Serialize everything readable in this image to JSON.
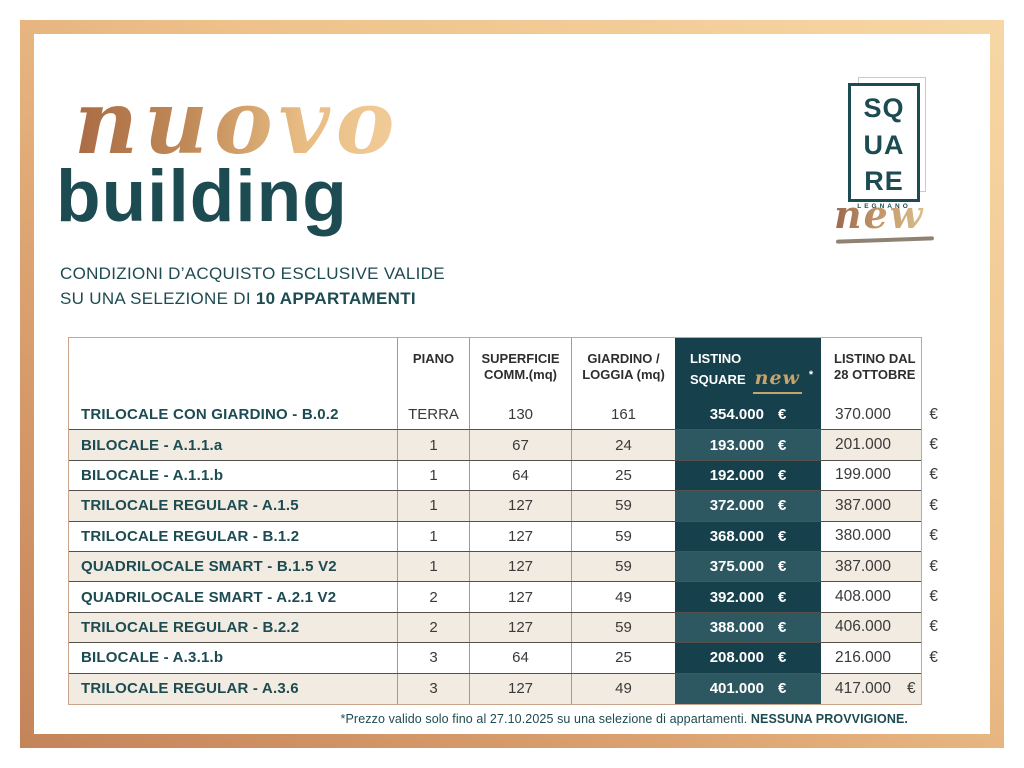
{
  "page": {
    "title_script": "nuovo",
    "title_main": "building",
    "subtitle_line1": "CONDIZIONI D’ACQUISTO ESCLUSIVE VALIDE",
    "subtitle_line2_prefix": "SU UNA SELEZIONE DI ",
    "subtitle_line2_bold": "10 APPARTAMENTI"
  },
  "logo": {
    "lines": [
      "SQ",
      "UA",
      "RE"
    ],
    "city": "LEGNANO",
    "script": "new"
  },
  "colors": {
    "teal": "#1d4b52",
    "dark_column": "#16404b",
    "dark_column_alt": "#2d5761",
    "beige_row": "#f1ebe1",
    "gold_accent": "#c8a36a",
    "frame_light": "#f7d7a6",
    "frame_dark": "#c4845a"
  },
  "table": {
    "headers": {
      "piano": "PIANO",
      "superficie": [
        "SUPERFICIE",
        "COMM.(mq)"
      ],
      "giardino": [
        "GIARDINO /",
        "LOGGIA (mq)"
      ],
      "listino_square_line1": "LISTINO",
      "listino_square_word": "SQUARE",
      "listino_square_script": "new",
      "listino_square_asterisk": "*",
      "listino_dal": [
        "LISTINO DAL",
        "28 OTTOBRE"
      ]
    },
    "currency": "€",
    "rows": [
      {
        "name": "TRILOCALE CON GIARDINO - B.0.2",
        "piano": "TERRA",
        "superficie": "130",
        "giardino": "161",
        "listino_square": "354.000",
        "listino_dal": "370.000"
      },
      {
        "name": "BILOCALE - A.1.1.a",
        "piano": "1",
        "superficie": "67",
        "giardino": "24",
        "listino_square": "193.000",
        "listino_dal": "201.000"
      },
      {
        "name": "BILOCALE - A.1.1.b",
        "piano": "1",
        "superficie": "64",
        "giardino": "25",
        "listino_square": "192.000",
        "listino_dal": "199.000"
      },
      {
        "name": "TRILOCALE REGULAR - A.1.5",
        "piano": "1",
        "superficie": "127",
        "giardino": "59",
        "listino_square": "372.000",
        "listino_dal": "387.000"
      },
      {
        "name": "TRILOCALE REGULAR - B.1.2",
        "piano": "1",
        "superficie": "127",
        "giardino": "59",
        "listino_square": "368.000",
        "listino_dal": "380.000"
      },
      {
        "name": "QUADRILOCALE SMART - B.1.5 V2",
        "piano": "1",
        "superficie": "127",
        "giardino": "59",
        "listino_square": "375.000",
        "listino_dal": "387.000"
      },
      {
        "name": "QUADRILOCALE SMART - A.2.1 V2",
        "piano": "2",
        "superficie": "127",
        "giardino": "49",
        "listino_square": "392.000",
        "listino_dal": "408.000"
      },
      {
        "name": "TRILOCALE REGULAR - B.2.2",
        "piano": "2",
        "superficie": "127",
        "giardino": "59",
        "listino_square": "388.000",
        "listino_dal": "406.000"
      },
      {
        "name": "BILOCALE - A.3.1.b",
        "piano": "3",
        "superficie": "64",
        "giardino": "25",
        "listino_square": "208.000",
        "listino_dal": "216.000"
      },
      {
        "name": "TRILOCALE REGULAR - A.3.6",
        "piano": "3",
        "superficie": "127",
        "giardino": "49",
        "listino_square": "401.000",
        "listino_dal": "417.000"
      }
    ]
  },
  "footer": {
    "note": "*Prezzo valido solo fino al 27.10.2025 su una selezione di appartamenti. ",
    "note_bold": "NESSUNA PROVVIGIONE."
  }
}
